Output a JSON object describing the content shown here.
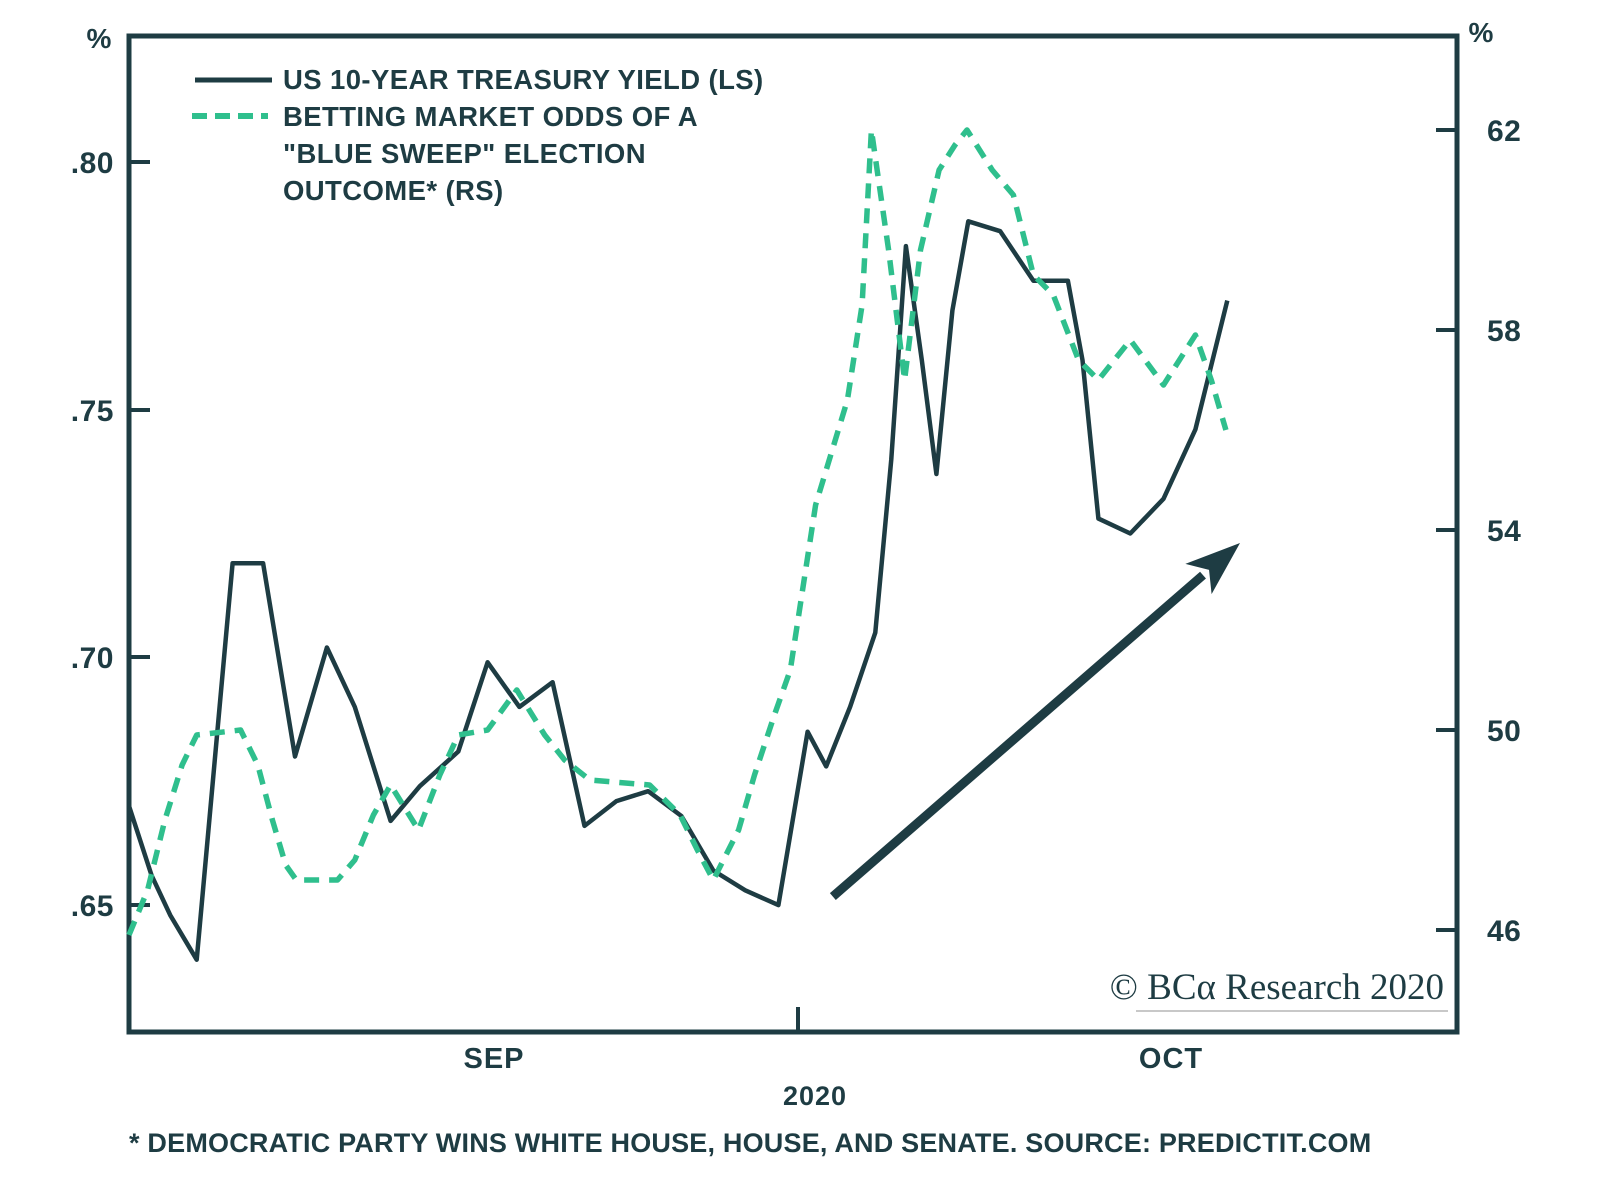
{
  "colors": {
    "ink": "#1e3c43",
    "green": "#2fbf8d",
    "underline_gray": "#c8c8c8",
    "background": "#ffffff"
  },
  "legend": {
    "series1_label": "US 10-YEAR TREASURY YIELD (LS)",
    "series2_line1": "BETTING MARKET ODDS OF A",
    "series2_line2": "\"BLUE SWEEP\" ELECTION",
    "series2_line3": "OUTCOME* (RS)"
  },
  "axes": {
    "left_unit": "%",
    "right_unit": "%"
  },
  "footnote": {
    "text": "* DEMOCRATIC PARTY WINS WHITE HOUSE, HOUSE, AND SENATE. SOURCE: PREDICTIT.COM"
  },
  "branding": {
    "text": "© BCα Research 2020"
  },
  "chart_data": {
    "type": "line",
    "title": "US 10-Year Treasury Yield vs Betting Market Odds of a Blue Sweep",
    "grid": false,
    "legend_position": "top-left-inside",
    "left_axis": {
      "label": "%",
      "min": 0.6244,
      "max": 0.8254,
      "ticks": [
        {
          "value": 0.8,
          "label": ".80"
        },
        {
          "value": 0.75,
          "label": ".75"
        },
        {
          "value": 0.7,
          "label": ".70"
        },
        {
          "value": 0.65,
          "label": ".65"
        }
      ]
    },
    "right_axis": {
      "label": "%",
      "min": 43.96,
      "max": 63.88,
      "ticks": [
        {
          "value": 62,
          "label": "62"
        },
        {
          "value": 58,
          "label": "58"
        },
        {
          "value": 54,
          "label": "54"
        },
        {
          "value": 50,
          "label": "50"
        },
        {
          "value": 46,
          "label": "46"
        }
      ]
    },
    "x_axis": {
      "labels": [
        {
          "text": "SEP",
          "f": 0.275
        },
        {
          "text": "OCT",
          "f": 0.785
        }
      ],
      "year_label": {
        "text": "2020",
        "f": 0.515
      },
      "boundary_tick_f": 0.504
    },
    "series": [
      {
        "name": "US 10-YEAR TREASURY YIELD (LS)",
        "axis": "left",
        "style": "solid",
        "color": "#1e3c43",
        "points": [
          [
            0.0,
            0.67
          ],
          [
            0.017,
            0.656
          ],
          [
            0.031,
            0.648
          ],
          [
            0.051,
            0.639
          ],
          [
            0.078,
            0.719
          ],
          [
            0.101,
            0.719
          ],
          [
            0.125,
            0.68
          ],
          [
            0.149,
            0.702
          ],
          [
            0.17,
            0.69
          ],
          [
            0.197,
            0.667
          ],
          [
            0.219,
            0.674
          ],
          [
            0.248,
            0.681
          ],
          [
            0.27,
            0.699
          ],
          [
            0.294,
            0.69
          ],
          [
            0.319,
            0.695
          ],
          [
            0.343,
            0.666
          ],
          [
            0.367,
            0.671
          ],
          [
            0.391,
            0.673
          ],
          [
            0.416,
            0.668
          ],
          [
            0.44,
            0.657
          ],
          [
            0.464,
            0.653
          ],
          [
            0.489,
            0.65
          ],
          [
            0.511,
            0.685
          ],
          [
            0.525,
            0.678
          ],
          [
            0.543,
            0.69
          ],
          [
            0.562,
            0.705
          ],
          [
            0.574,
            0.74
          ],
          [
            0.585,
            0.783
          ],
          [
            0.597,
            0.76
          ],
          [
            0.608,
            0.737
          ],
          [
            0.62,
            0.77
          ],
          [
            0.632,
            0.788
          ],
          [
            0.656,
            0.786
          ],
          [
            0.681,
            0.776
          ],
          [
            0.707,
            0.776
          ],
          [
            0.718,
            0.76
          ],
          [
            0.73,
            0.728
          ],
          [
            0.754,
            0.725
          ],
          [
            0.779,
            0.732
          ],
          [
            0.803,
            0.746
          ],
          [
            0.827,
            0.772
          ]
        ]
      },
      {
        "name": "BETTING MARKET ODDS OF A \"BLUE SWEEP\" ELECTION OUTCOME* (RS)",
        "axis": "right",
        "style": "dashed",
        "color": "#2fbf8d",
        "points": [
          [
            0.0,
            45.9
          ],
          [
            0.014,
            46.8
          ],
          [
            0.027,
            48.2
          ],
          [
            0.04,
            49.3
          ],
          [
            0.051,
            49.9
          ],
          [
            0.084,
            50.0
          ],
          [
            0.097,
            49.3
          ],
          [
            0.108,
            48.2
          ],
          [
            0.118,
            47.3
          ],
          [
            0.126,
            47.0
          ],
          [
            0.157,
            47.0
          ],
          [
            0.17,
            47.4
          ],
          [
            0.184,
            48.3
          ],
          [
            0.197,
            48.9
          ],
          [
            0.218,
            48.0
          ],
          [
            0.234,
            49.1
          ],
          [
            0.248,
            49.9
          ],
          [
            0.27,
            50.0
          ],
          [
            0.292,
            50.8
          ],
          [
            0.313,
            49.9
          ],
          [
            0.328,
            49.4
          ],
          [
            0.347,
            49.0
          ],
          [
            0.392,
            48.9
          ],
          [
            0.415,
            48.3
          ],
          [
            0.428,
            47.6
          ],
          [
            0.44,
            47.0
          ],
          [
            0.459,
            48.0
          ],
          [
            0.471,
            49.1
          ],
          [
            0.486,
            50.3
          ],
          [
            0.498,
            51.2
          ],
          [
            0.517,
            54.5
          ],
          [
            0.541,
            56.6
          ],
          [
            0.552,
            58.5
          ],
          [
            0.559,
            62.0
          ],
          [
            0.572,
            59.6
          ],
          [
            0.584,
            57.0
          ],
          [
            0.596,
            59.6
          ],
          [
            0.61,
            61.2
          ],
          [
            0.622,
            61.7
          ],
          [
            0.631,
            62.0
          ],
          [
            0.65,
            61.2
          ],
          [
            0.666,
            60.7
          ],
          [
            0.681,
            59.1
          ],
          [
            0.696,
            58.7
          ],
          [
            0.715,
            57.4
          ],
          [
            0.73,
            57.0
          ],
          [
            0.754,
            57.8
          ],
          [
            0.779,
            56.9
          ],
          [
            0.803,
            57.9
          ],
          [
            0.815,
            57.0
          ],
          [
            0.826,
            56.0
          ]
        ]
      }
    ],
    "annotation_arrow": {
      "x1f": 0.53,
      "y1f": 0.864,
      "x2f": 0.8366,
      "y2f": 0.509
    }
  }
}
